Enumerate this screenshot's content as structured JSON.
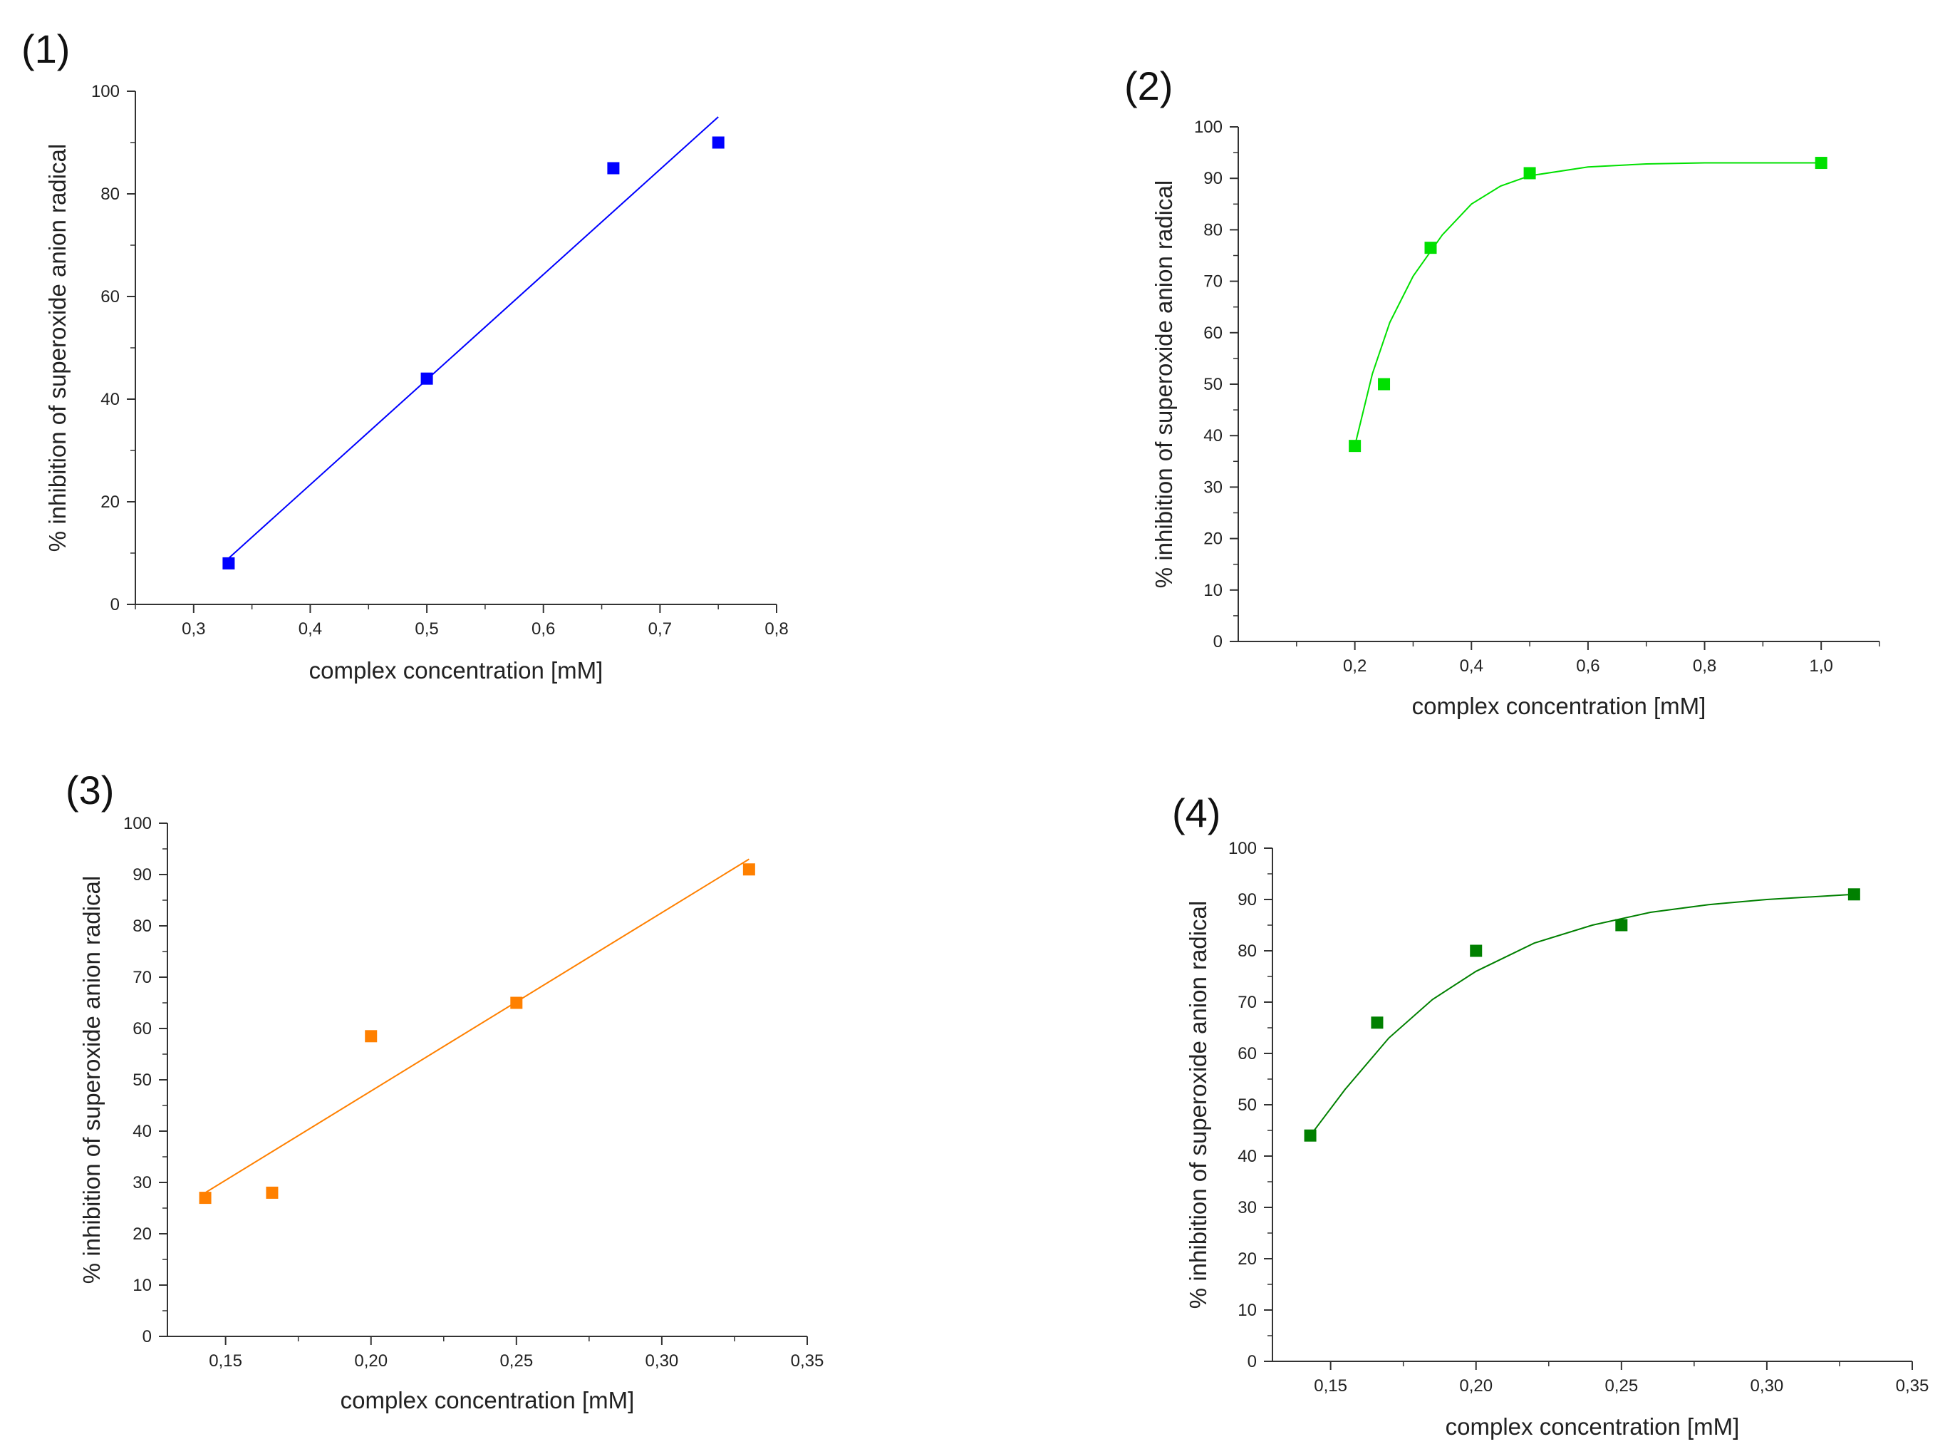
{
  "chart_data": [
    {
      "type": "scatter",
      "panel_label": "(1)",
      "xlabel": "complex concentration [mM]",
      "ylabel": "% inhibition of superoxide anion radical",
      "xlim": [
        0.25,
        0.8
      ],
      "ylim": [
        0,
        100
      ],
      "x_ticks": [
        0.3,
        0.4,
        0.5,
        0.6,
        0.7,
        0.8
      ],
      "x_tick_labels": [
        "0,3",
        "0,4",
        "0,5",
        "0,6",
        "0,7",
        "0,8"
      ],
      "y_ticks": [
        0,
        20,
        40,
        60,
        80,
        100
      ],
      "y_tick_labels": [
        "0",
        "20",
        "40",
        "60",
        "80",
        "100"
      ],
      "color": "#0000ff",
      "series": [
        {
          "x": [
            0.33,
            0.5,
            0.66,
            0.75
          ],
          "y": [
            8,
            44,
            85,
            90
          ]
        }
      ],
      "fit": {
        "kind": "linear",
        "x": [
          0.33,
          0.75
        ],
        "y": [
          9,
          95
        ]
      },
      "grid": false,
      "legend": "none"
    },
    {
      "type": "scatter",
      "panel_label": "(2)",
      "xlabel": "complex concentration [mM]",
      "ylabel": "% inhibition of superoxide anion radical",
      "xlim": [
        0.0,
        1.1
      ],
      "ylim": [
        0,
        100
      ],
      "x_ticks": [
        0.2,
        0.4,
        0.6,
        0.8,
        1.0
      ],
      "x_tick_labels": [
        "0,2",
        "0,4",
        "0,6",
        "0,8",
        "1,0"
      ],
      "y_ticks": [
        0,
        10,
        20,
        30,
        40,
        50,
        60,
        70,
        80,
        90,
        100
      ],
      "y_tick_labels": [
        "0",
        "10",
        "20",
        "30",
        "40",
        "50",
        "60",
        "70",
        "80",
        "90",
        "100"
      ],
      "color": "#00e000",
      "series": [
        {
          "x": [
            0.2,
            0.25,
            0.33,
            0.5,
            1.0
          ],
          "y": [
            38,
            50,
            76.5,
            91,
            93
          ]
        }
      ],
      "fit": {
        "kind": "curve",
        "x": [
          0.2,
          0.23,
          0.26,
          0.3,
          0.35,
          0.4,
          0.45,
          0.5,
          0.6,
          0.7,
          0.8,
          0.9,
          1.0
        ],
        "y": [
          38,
          52,
          62,
          71,
          79,
          85,
          88.5,
          90.5,
          92.2,
          92.8,
          93,
          93,
          93
        ]
      },
      "grid": false,
      "legend": "none"
    },
    {
      "type": "scatter",
      "panel_label": "(3)",
      "xlabel": "complex concentration [mM]",
      "ylabel": "% inhibition of superoxide anion radical",
      "xlim": [
        0.13,
        0.35
      ],
      "ylim": [
        0,
        100
      ],
      "x_ticks": [
        0.15,
        0.2,
        0.25,
        0.3,
        0.35
      ],
      "x_tick_labels": [
        "0,15",
        "0,20",
        "0,25",
        "0,30",
        "0,35"
      ],
      "y_ticks": [
        0,
        10,
        20,
        30,
        40,
        50,
        60,
        70,
        80,
        90,
        100
      ],
      "y_tick_labels": [
        "0",
        "10",
        "20",
        "30",
        "40",
        "50",
        "60",
        "70",
        "80",
        "90",
        "100"
      ],
      "color": "#ff8000",
      "series": [
        {
          "x": [
            0.143,
            0.166,
            0.2,
            0.25,
            0.33
          ],
          "y": [
            27,
            28,
            58.5,
            65,
            91
          ]
        }
      ],
      "fit": {
        "kind": "linear",
        "x": [
          0.143,
          0.33
        ],
        "y": [
          28,
          93
        ]
      },
      "grid": false,
      "legend": "none"
    },
    {
      "type": "scatter",
      "panel_label": "(4)",
      "xlabel": "complex concentration [mM]",
      "ylabel": "% inhibition of superoxide anion radical",
      "xlim": [
        0.13,
        0.35
      ],
      "ylim": [
        0,
        100
      ],
      "x_ticks": [
        0.15,
        0.2,
        0.25,
        0.3,
        0.35
      ],
      "x_tick_labels": [
        "0,15",
        "0,20",
        "0,25",
        "0,30",
        "0,35"
      ],
      "y_ticks": [
        0,
        10,
        20,
        30,
        40,
        50,
        60,
        70,
        80,
        90,
        100
      ],
      "y_tick_labels": [
        "0",
        "10",
        "20",
        "30",
        "40",
        "50",
        "60",
        "70",
        "80",
        "90",
        "100"
      ],
      "color": "#008000",
      "series": [
        {
          "x": [
            0.143,
            0.166,
            0.2,
            0.25,
            0.33
          ],
          "y": [
            44,
            66,
            80,
            85,
            91
          ]
        }
      ],
      "fit": {
        "kind": "curve",
        "x": [
          0.143,
          0.155,
          0.17,
          0.185,
          0.2,
          0.22,
          0.24,
          0.26,
          0.28,
          0.3,
          0.33
        ],
        "y": [
          44,
          53,
          63,
          70.5,
          76,
          81.5,
          85,
          87.5,
          89,
          90,
          91
        ]
      },
      "grid": false,
      "legend": "none"
    }
  ]
}
